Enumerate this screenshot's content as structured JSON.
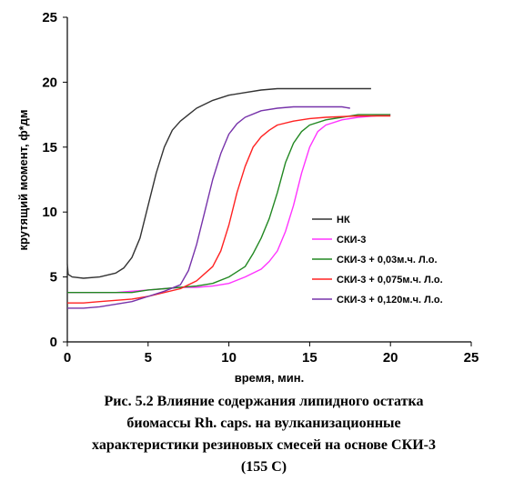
{
  "chart_data": {
    "type": "line",
    "title": "",
    "xlabel": "время, мин.",
    "ylabel": "крутящий момент, ф*дм",
    "xlim": [
      0,
      25
    ],
    "ylim": [
      0,
      25
    ],
    "x_ticks": [
      "0",
      "5",
      "10",
      "15",
      "20",
      "25"
    ],
    "y_ticks": [
      "0",
      "5",
      "10",
      "15",
      "20",
      "25"
    ],
    "grid": false,
    "legend_position": "right",
    "series": [
      {
        "name": "НК",
        "color": "#333333",
        "points": [
          [
            0,
            6.0
          ],
          [
            0.05,
            5.2
          ],
          [
            0.3,
            5.0
          ],
          [
            1,
            4.9
          ],
          [
            2,
            5.0
          ],
          [
            3,
            5.3
          ],
          [
            3.5,
            5.7
          ],
          [
            4,
            6.5
          ],
          [
            4.5,
            8.0
          ],
          [
            5,
            10.5
          ],
          [
            5.5,
            13.0
          ],
          [
            6,
            15.0
          ],
          [
            6.5,
            16.3
          ],
          [
            7,
            17.0
          ],
          [
            7.5,
            17.5
          ],
          [
            8,
            18.0
          ],
          [
            9,
            18.6
          ],
          [
            10,
            19.0
          ],
          [
            11,
            19.2
          ],
          [
            12,
            19.4
          ],
          [
            13,
            19.5
          ],
          [
            14,
            19.5
          ],
          [
            16,
            19.5
          ],
          [
            18,
            19.5
          ],
          [
            18.8,
            19.5
          ]
        ]
      },
      {
        "name": "СКИ-3",
        "color": "#ff33ff",
        "points": [
          [
            0,
            3.8
          ],
          [
            1,
            3.8
          ],
          [
            2,
            3.8
          ],
          [
            3,
            3.8
          ],
          [
            4,
            3.9
          ],
          [
            5,
            4.0
          ],
          [
            6,
            4.1
          ],
          [
            7,
            4.2
          ],
          [
            8,
            4.2
          ],
          [
            9,
            4.3
          ],
          [
            10,
            4.5
          ],
          [
            11,
            5.0
          ],
          [
            12,
            5.6
          ],
          [
            12.5,
            6.2
          ],
          [
            13,
            7.0
          ],
          [
            13.5,
            8.5
          ],
          [
            14,
            10.5
          ],
          [
            14.5,
            13.0
          ],
          [
            15,
            15.0
          ],
          [
            15.5,
            16.2
          ],
          [
            16,
            16.7
          ],
          [
            17,
            17.1
          ],
          [
            18,
            17.3
          ],
          [
            19,
            17.4
          ],
          [
            20,
            17.5
          ]
        ]
      },
      {
        "name": "СКИ-3 + 0,03м.ч. Л.о.",
        "color": "#228822",
        "points": [
          [
            0,
            3.8
          ],
          [
            1,
            3.8
          ],
          [
            2,
            3.8
          ],
          [
            3,
            3.8
          ],
          [
            4,
            3.8
          ],
          [
            5,
            4.0
          ],
          [
            6,
            4.1
          ],
          [
            7,
            4.2
          ],
          [
            8,
            4.3
          ],
          [
            9,
            4.5
          ],
          [
            10,
            5.0
          ],
          [
            11,
            5.8
          ],
          [
            11.5,
            6.8
          ],
          [
            12,
            8.0
          ],
          [
            12.5,
            9.5
          ],
          [
            13,
            11.5
          ],
          [
            13.5,
            13.8
          ],
          [
            14,
            15.3
          ],
          [
            14.5,
            16.2
          ],
          [
            15,
            16.7
          ],
          [
            16,
            17.1
          ],
          [
            17,
            17.3
          ],
          [
            18,
            17.5
          ],
          [
            19,
            17.5
          ],
          [
            20,
            17.5
          ]
        ]
      },
      {
        "name": "СКИ-3 + 0,075м.ч. Л.о.",
        "color": "#ff2222",
        "points": [
          [
            0,
            3.0
          ],
          [
            1,
            3.0
          ],
          [
            2,
            3.1
          ],
          [
            3,
            3.2
          ],
          [
            4,
            3.3
          ],
          [
            5,
            3.5
          ],
          [
            6,
            3.8
          ],
          [
            7,
            4.1
          ],
          [
            8,
            4.7
          ],
          [
            9,
            5.8
          ],
          [
            9.5,
            7.0
          ],
          [
            10,
            9.0
          ],
          [
            10.5,
            11.5
          ],
          [
            11,
            13.5
          ],
          [
            11.5,
            15.0
          ],
          [
            12,
            15.8
          ],
          [
            12.5,
            16.3
          ],
          [
            13,
            16.7
          ],
          [
            14,
            17.0
          ],
          [
            15,
            17.2
          ],
          [
            16,
            17.3
          ],
          [
            18,
            17.4
          ],
          [
            20,
            17.4
          ]
        ]
      },
      {
        "name": "СКИ-3 + 0,120м.ч. Л.о.",
        "color": "#7733aa",
        "points": [
          [
            0,
            2.6
          ],
          [
            1,
            2.6
          ],
          [
            2,
            2.7
          ],
          [
            3,
            2.9
          ],
          [
            4,
            3.1
          ],
          [
            5,
            3.5
          ],
          [
            6,
            3.9
          ],
          [
            7,
            4.4
          ],
          [
            7.5,
            5.5
          ],
          [
            8,
            7.5
          ],
          [
            8.5,
            10.0
          ],
          [
            9,
            12.5
          ],
          [
            9.5,
            14.5
          ],
          [
            10,
            16.0
          ],
          [
            10.5,
            16.8
          ],
          [
            11,
            17.3
          ],
          [
            12,
            17.8
          ],
          [
            13,
            18.0
          ],
          [
            14,
            18.1
          ],
          [
            15,
            18.1
          ],
          [
            16,
            18.1
          ],
          [
            17,
            18.1
          ],
          [
            17.5,
            18.0
          ]
        ]
      }
    ]
  },
  "caption": [
    "Рис. 5.2 Влияние содержания липидного остатка",
    "биомассы Rh. caps. на вулканизационные",
    "характеристики резиновых смесей на основе СКИ-3",
    "(155 С)"
  ]
}
